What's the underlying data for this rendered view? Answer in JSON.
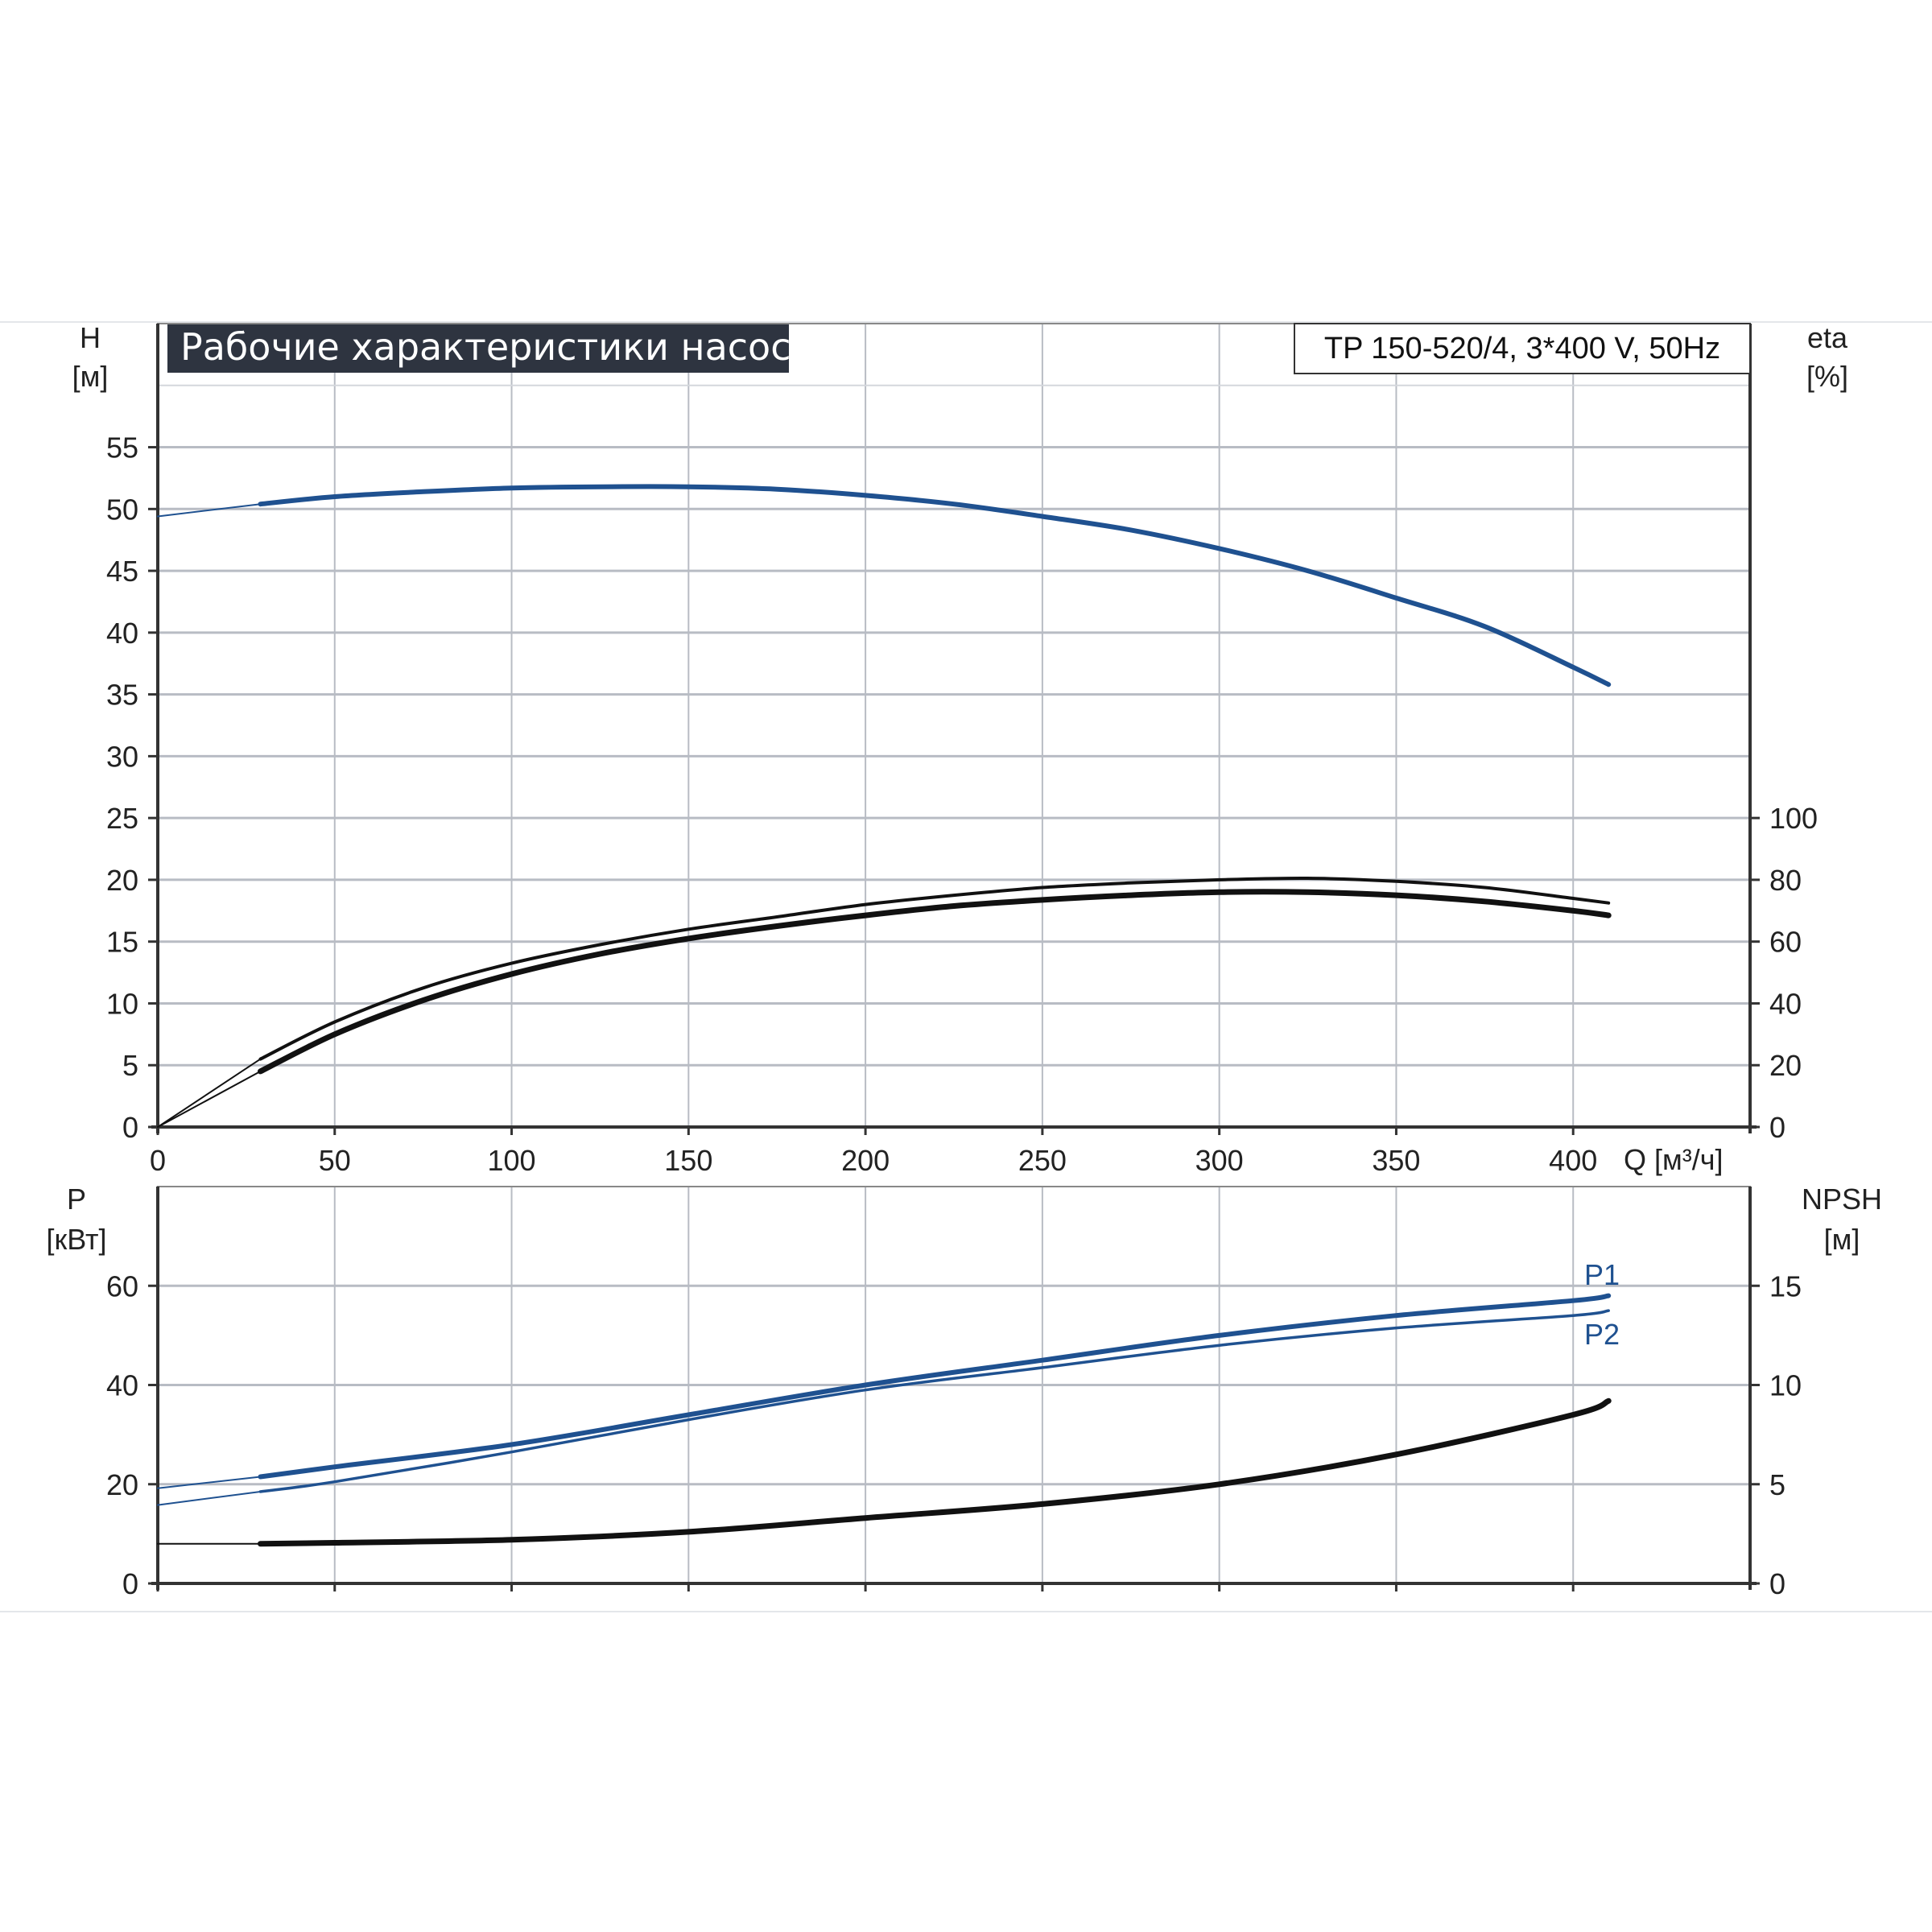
{
  "title": "Рабочие характеристики насоса",
  "model": "TP 150-520/4, 3*400 V, 50Hz",
  "colors": {
    "blue": "#1f5190",
    "black": "#111111",
    "grid": "#b8bcc4",
    "title_bg": "#2e3440"
  },
  "chart_data": [
    {
      "type": "line",
      "name": "top",
      "x_label": "Q [м³/ч]",
      "x_ticks": [
        "0",
        "50",
        "100",
        "150",
        "200",
        "250",
        "300",
        "350",
        "400"
      ],
      "xlim": [
        0,
        450
      ],
      "y_left": {
        "label_line1": "H",
        "label_line2": "[м]",
        "ticks": [
          "0",
          "5",
          "10",
          "15",
          "20",
          "25",
          "30",
          "35",
          "40",
          "45",
          "50",
          "55"
        ],
        "lim": [
          0,
          65
        ]
      },
      "y_right": {
        "label_line1": "eta",
        "label_line2": "[%]",
        "ticks": [
          "0",
          "20",
          "40",
          "60",
          "80",
          "100"
        ],
        "lim": [
          0,
          260
        ]
      },
      "grid": true,
      "series": [
        {
          "id": "H",
          "axis": "left",
          "color": "blue",
          "width": 6,
          "x": [
            29,
            50,
            75,
            100,
            125,
            150,
            175,
            200,
            225,
            250,
            275,
            300,
            325,
            350,
            375,
            400,
            410
          ],
          "y": [
            50.4,
            51.0,
            51.4,
            51.7,
            51.8,
            51.8,
            51.6,
            51.1,
            50.4,
            49.4,
            48.3,
            46.8,
            45.0,
            42.8,
            40.5,
            37.2,
            35.8
          ]
        },
        {
          "id": "H-extension",
          "axis": "left",
          "color": "blue",
          "width": 2,
          "x": [
            0,
            29
          ],
          "y": [
            49.4,
            50.4
          ]
        },
        {
          "id": "eta-thin",
          "axis": "right",
          "color": "black",
          "width": 4,
          "x": [
            29,
            50,
            75,
            100,
            125,
            150,
            175,
            200,
            225,
            250,
            275,
            300,
            325,
            350,
            375,
            400,
            410
          ],
          "y": [
            22,
            34,
            45,
            53,
            59,
            64,
            68,
            72,
            75,
            77.5,
            79,
            80,
            80.5,
            79.5,
            77.5,
            74,
            72.5
          ]
        },
        {
          "id": "eta-thick",
          "axis": "right",
          "color": "black",
          "width": 7,
          "x": [
            29,
            50,
            75,
            100,
            125,
            150,
            175,
            200,
            225,
            250,
            275,
            300,
            325,
            350,
            375,
            400,
            410
          ],
          "y": [
            18,
            30,
            41,
            49.5,
            56,
            61,
            65,
            68.5,
            71.5,
            73.5,
            75,
            76,
            76,
            75,
            73,
            70,
            68.5
          ]
        },
        {
          "id": "eta-extension-1",
          "axis": "right",
          "color": "black",
          "width": 2,
          "x": [
            0,
            29
          ],
          "y": [
            0,
            22
          ]
        },
        {
          "id": "eta-extension-2",
          "axis": "right",
          "color": "black",
          "width": 2,
          "x": [
            0,
            29
          ],
          "y": [
            0,
            18
          ]
        }
      ]
    },
    {
      "type": "line",
      "name": "bottom",
      "xlim": [
        0,
        450
      ],
      "y_left": {
        "label_line1": "P",
        "label_line2": "[кВт]",
        "ticks": [
          "0",
          "20",
          "40",
          "60"
        ],
        "lim": [
          0,
          80
        ]
      },
      "y_right": {
        "label_line1": "NPSH",
        "label_line2": "[м]",
        "ticks": [
          "0",
          "5",
          "10",
          "15"
        ],
        "lim": [
          0,
          20
        ]
      },
      "grid": true,
      "series": [
        {
          "id": "P1",
          "label": "P1",
          "axis": "left",
          "color": "blue",
          "width": 6,
          "x": [
            29,
            50,
            100,
            150,
            200,
            250,
            300,
            350,
            400,
            410
          ],
          "y": [
            21.5,
            23.5,
            28,
            34,
            40,
            45,
            50,
            54,
            57,
            58
          ]
        },
        {
          "id": "P1-extension",
          "axis": "left",
          "color": "blue",
          "width": 2,
          "x": [
            0,
            29
          ],
          "y": [
            19.2,
            21.5
          ]
        },
        {
          "id": "P2",
          "label": "P2",
          "axis": "left",
          "color": "blue",
          "width": 3.5,
          "x": [
            29,
            50,
            100,
            150,
            200,
            250,
            300,
            350,
            400,
            410
          ],
          "y": [
            18.5,
            20.5,
            26.5,
            33,
            39,
            43.5,
            48,
            51.5,
            54,
            55
          ]
        },
        {
          "id": "P2-extension",
          "axis": "left",
          "color": "blue",
          "width": 2,
          "x": [
            0,
            29
          ],
          "y": [
            15.8,
            18.5
          ]
        },
        {
          "id": "NPSH",
          "axis": "right",
          "color": "black",
          "width": 7,
          "x": [
            29,
            50,
            100,
            150,
            200,
            250,
            300,
            350,
            400,
            410
          ],
          "y": [
            2.0,
            2.05,
            2.2,
            2.6,
            3.3,
            4.0,
            5.0,
            6.5,
            8.5,
            9.2
          ]
        },
        {
          "id": "NPSH-extension",
          "axis": "right",
          "color": "black",
          "width": 2,
          "x": [
            0,
            29
          ],
          "y": [
            2.0,
            2.0
          ]
        }
      ]
    }
  ]
}
